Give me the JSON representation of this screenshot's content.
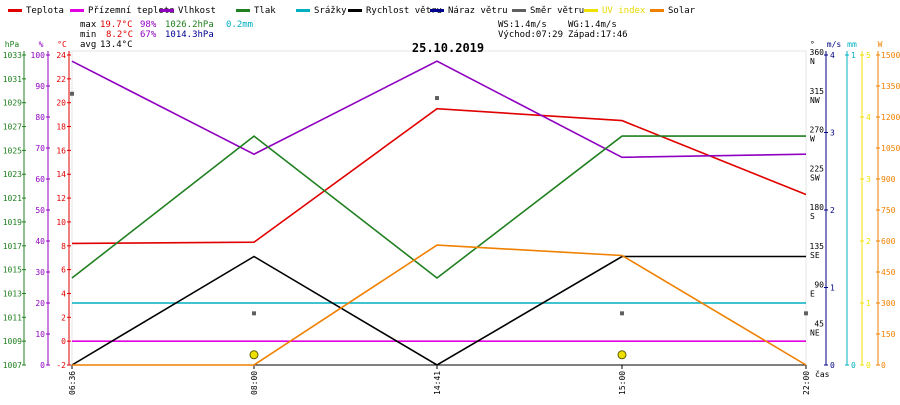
{
  "chart_data": {
    "type": "line",
    "title": "25.10.2019",
    "legend": [
      {
        "label": "Teplota",
        "color": "#e00000"
      },
      {
        "label": "Přízemní teplota",
        "color": "#e000e0"
      },
      {
        "label": "Vlhkost",
        "color": "#9000c0"
      },
      {
        "label": "Tlak",
        "color": "#208020"
      },
      {
        "label": "Srážky",
        "color": "#00b0c0"
      },
      {
        "label": "Rychlost větru",
        "color": "#000000"
      },
      {
        "label": "Náraz větru",
        "color": "#000090"
      },
      {
        "label": "Směr větru",
        "color": "#606060"
      },
      {
        "label": "UV index",
        "color": "#f0e000"
      },
      {
        "label": "Solar",
        "color": "#f08000"
      }
    ],
    "stats": {
      "max": {
        "label": "max",
        "temp": "19.7°C",
        "hum": "98%",
        "press": "1026.2hPa",
        "rain": "0.2mm"
      },
      "min": {
        "label": "min",
        "temp": "8.2°C",
        "hum": "67%",
        "press": "1014.3hPa"
      },
      "avg": {
        "label": "avg",
        "temp": "13.4°C"
      }
    },
    "info": {
      "ws": "WS:1.4m/s",
      "wg": "WG:1.4m/s",
      "sunrise": "Východ:07:29",
      "sunset": "Západ:17:46"
    },
    "x_labels": [
      "06:36",
      "08:00",
      "14:41",
      "15:00",
      "22:00"
    ],
    "x_axis_label": "čas",
    "axes": {
      "hpa": {
        "unit": "hPa",
        "ticks": [
          "1007",
          "1009",
          "1011",
          "1013",
          "1015",
          "1017",
          "1019",
          "1021",
          "1023",
          "1025",
          "1027",
          "1029",
          "1031",
          "1033"
        ]
      },
      "pct": {
        "unit": "%",
        "ticks": [
          "0",
          "10",
          "20",
          "30",
          "40",
          "50",
          "60",
          "70",
          "80",
          "90",
          "100"
        ]
      },
      "degc": {
        "unit": "°C",
        "ticks": [
          "-2",
          "0",
          "2",
          "4",
          "6",
          "8",
          "10",
          "12",
          "14",
          "16",
          "18",
          "20",
          "22",
          "24"
        ]
      },
      "deg": {
        "unit": "°",
        "ticks": [
          "45",
          "90",
          "135",
          "180",
          "225",
          "270",
          "315",
          "360"
        ],
        "compass": [
          "NE",
          "E",
          "SE",
          "S",
          "SW",
          "W",
          "NW",
          "N"
        ]
      },
      "ms": {
        "unit": "m/s",
        "ticks": [
          "0",
          "1",
          "2",
          "3",
          "4"
        ]
      },
      "mm": {
        "unit": "mm",
        "ticks": [
          "0",
          "1"
        ]
      },
      "uv": {
        "ticks": [
          "0",
          "1",
          "2",
          "3",
          "4",
          "5"
        ]
      },
      "wm2": {
        "unit": "W",
        "ticks": [
          "0",
          "150",
          "300",
          "450",
          "600",
          "750",
          "900",
          "1050",
          "1200",
          "1350",
          "1500"
        ]
      }
    },
    "series": [
      {
        "name": "Teplota",
        "axis": "degc",
        "color": "#e00000",
        "points": [
          [
            0,
            8.2
          ],
          [
            1,
            8.3
          ],
          [
            2,
            19.5
          ],
          [
            3,
            18.5
          ],
          [
            4,
            12.3
          ]
        ]
      },
      {
        "name": "Přízemní teplota",
        "axis": "degc",
        "color": "#e000e0",
        "points": [
          [
            0,
            0
          ],
          [
            4,
            0
          ]
        ]
      },
      {
        "name": "Vlhkost",
        "axis": "pct",
        "color": "#9000c0",
        "points": [
          [
            0,
            98
          ],
          [
            1,
            68
          ],
          [
            2,
            98
          ],
          [
            3,
            67
          ],
          [
            4,
            68
          ]
        ]
      },
      {
        "name": "Tlak",
        "axis": "hpa",
        "color": "#208020",
        "points": [
          [
            0,
            1014.3
          ],
          [
            1,
            1026.2
          ],
          [
            2,
            1014.3
          ],
          [
            3,
            1026.2
          ],
          [
            4,
            1026.2
          ]
        ]
      },
      {
        "name": "Srážky",
        "axis": "mm",
        "color": "#00b0c0",
        "points": [
          [
            0,
            0.2
          ],
          [
            4,
            0.2
          ]
        ]
      },
      {
        "name": "Rychlost větru",
        "axis": "ms",
        "color": "#000000",
        "points": [
          [
            0,
            0
          ],
          [
            1,
            1.4
          ],
          [
            2,
            0
          ],
          [
            3,
            1.4
          ],
          [
            4,
            1.4
          ]
        ]
      },
      {
        "name": "Solar",
        "axis": "wm2",
        "color": "#f08000",
        "points": [
          [
            0,
            0
          ],
          [
            1,
            0
          ],
          [
            2,
            580
          ],
          [
            3,
            530
          ],
          [
            4,
            0
          ]
        ]
      }
    ],
    "wind_direction": [
      [
        0,
        315
      ],
      [
        1,
        60
      ],
      [
        2,
        310
      ],
      [
        3,
        60
      ],
      [
        4,
        60
      ]
    ],
    "uv_points": [
      [
        1,
        0.1
      ],
      [
        3,
        0.1
      ]
    ]
  }
}
